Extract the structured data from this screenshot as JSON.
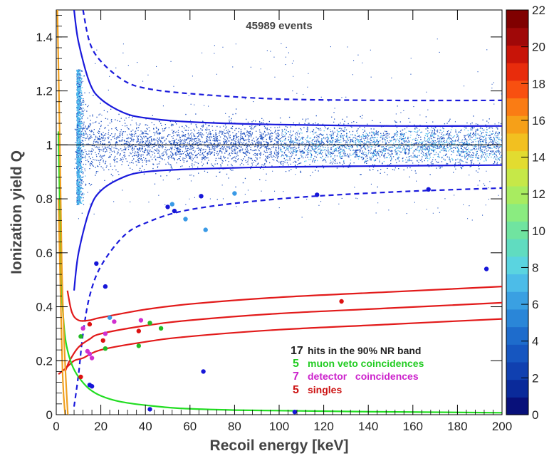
{
  "chart_data": {
    "type": "scatter",
    "xlabel": "Recoil energy [keV]",
    "ylabel": "Ionization yield Q",
    "xlim": [
      0,
      200
    ],
    "ylim": [
      0,
      1.5
    ],
    "x_ticks": [
      0,
      20,
      40,
      60,
      80,
      100,
      120,
      140,
      160,
      180,
      200
    ],
    "y_ticks": [
      0,
      0.2,
      0.4,
      0.6,
      0.8,
      1,
      1.2,
      1.4
    ],
    "event_count_label": "45989 events",
    "colorbar": {
      "range": [
        0,
        22
      ],
      "ticks": [
        0,
        2,
        4,
        6,
        8,
        10,
        12,
        14,
        16,
        18,
        20,
        22
      ],
      "colors": [
        "#08107a",
        "#0a2a9a",
        "#1040b0",
        "#1656c0",
        "#1e6ccc",
        "#2a86d8",
        "#3aa0e2",
        "#4cbce8",
        "#5ad4e0",
        "#60dcc0",
        "#70e4a0",
        "#8aec80",
        "#a8ec60",
        "#c6e848",
        "#e2dc30",
        "#f2c020",
        "#f6a018",
        "#fa7c14",
        "#f85010",
        "#e82c0c",
        "#c81408",
        "#a00808",
        "#800000"
      ]
    },
    "main_population": {
      "density_color_low": "#1e50c0",
      "density_color_high": "#4cc0f0",
      "q_center": 1.0
    },
    "reference_line_y": 1.0,
    "bands": {
      "er_90_inner_upper": [
        [
          8,
          1.5
        ],
        [
          10,
          1.38
        ],
        [
          15,
          1.23
        ],
        [
          20,
          1.17
        ],
        [
          30,
          1.12
        ],
        [
          40,
          1.1
        ],
        [
          60,
          1.085
        ],
        [
          100,
          1.075
        ],
        [
          150,
          1.07
        ],
        [
          200,
          1.07
        ]
      ],
      "er_90_inner_lower": [
        [
          8,
          0.46
        ],
        [
          10,
          0.6
        ],
        [
          15,
          0.76
        ],
        [
          20,
          0.83
        ],
        [
          30,
          0.88
        ],
        [
          40,
          0.9
        ],
        [
          60,
          0.91
        ],
        [
          100,
          0.918
        ],
        [
          150,
          0.922
        ],
        [
          200,
          0.925
        ]
      ],
      "er_outer_upper": [
        [
          12,
          1.5
        ],
        [
          15,
          1.38
        ],
        [
          20,
          1.31
        ],
        [
          30,
          1.24
        ],
        [
          40,
          1.21
        ],
        [
          60,
          1.19
        ],
        [
          100,
          1.17
        ],
        [
          150,
          1.165
        ],
        [
          200,
          1.165
        ]
      ],
      "er_outer_lower": [
        [
          8,
          0.03
        ],
        [
          10,
          0.15
        ],
        [
          12,
          0.3
        ],
        [
          15,
          0.44
        ],
        [
          20,
          0.55
        ],
        [
          30,
          0.66
        ],
        [
          40,
          0.71
        ],
        [
          60,
          0.76
        ],
        [
          100,
          0.8
        ],
        [
          150,
          0.825
        ],
        [
          200,
          0.84
        ]
      ],
      "nr_upper": [
        [
          5,
          0.46
        ],
        [
          7,
          0.38
        ],
        [
          10,
          0.35
        ],
        [
          15,
          0.35
        ],
        [
          20,
          0.36
        ],
        [
          40,
          0.39
        ],
        [
          60,
          0.41
        ],
        [
          100,
          0.435
        ],
        [
          150,
          0.455
        ],
        [
          200,
          0.475
        ]
      ],
      "nr_center": [
        [
          4,
          0.16
        ],
        [
          6,
          0.2
        ],
        [
          10,
          0.25
        ],
        [
          15,
          0.28
        ],
        [
          20,
          0.3
        ],
        [
          40,
          0.33
        ],
        [
          60,
          0.35
        ],
        [
          100,
          0.375
        ],
        [
          150,
          0.395
        ],
        [
          200,
          0.415
        ]
      ],
      "nr_lower": [
        [
          1,
          0.15
        ],
        [
          4,
          0.17
        ],
        [
          8,
          0.2
        ],
        [
          12,
          0.21
        ],
        [
          20,
          0.24
        ],
        [
          40,
          0.27
        ],
        [
          60,
          0.29
        ],
        [
          100,
          0.315
        ],
        [
          150,
          0.335
        ],
        [
          200,
          0.355
        ]
      ],
      "heat_threshold_orange": [
        [
          0.5,
          1.5
        ],
        [
          1.5,
          1.05
        ],
        [
          2.5,
          0.55
        ],
        [
          3.5,
          0.28
        ],
        [
          4.5,
          0.1
        ],
        [
          5.2,
          0
        ]
      ],
      "ionization_threshold_green": [
        [
          1,
          1.05
        ],
        [
          2,
          0.6
        ],
        [
          3,
          0.38
        ],
        [
          5,
          0.24
        ],
        [
          10,
          0.14
        ],
        [
          20,
          0.07
        ],
        [
          40,
          0.035
        ],
        [
          80,
          0.017
        ],
        [
          200,
          0.007
        ]
      ],
      "ionization_threshold_orange_low": [
        [
          1,
          0.8
        ],
        [
          2,
          0.42
        ],
        [
          3,
          0.12
        ],
        [
          4,
          0
        ]
      ]
    },
    "blue_points": [
      [
        65,
        0.81
      ],
      [
        50,
        0.77
      ],
      [
        53,
        0.755
      ],
      [
        117,
        0.815
      ],
      [
        167,
        0.835
      ],
      [
        18,
        0.56
      ],
      [
        22,
        0.475
      ],
      [
        193,
        0.54
      ],
      [
        66,
        0.16
      ],
      [
        15,
        0.11
      ],
      [
        16,
        0.105
      ],
      [
        42,
        0.02
      ],
      [
        107,
        0.01
      ]
    ],
    "lightblue_points": [
      [
        52,
        0.78
      ],
      [
        58,
        0.725
      ],
      [
        67,
        0.685
      ],
      [
        80,
        0.82
      ],
      [
        24,
        0.36
      ]
    ],
    "green_points": [
      [
        11,
        0.29
      ],
      [
        22,
        0.245
      ],
      [
        37,
        0.255
      ],
      [
        42,
        0.34
      ],
      [
        47,
        0.32
      ]
    ],
    "magenta_points": [
      [
        12,
        0.32
      ],
      [
        14,
        0.235
      ],
      [
        15,
        0.225
      ],
      [
        16,
        0.21
      ],
      [
        22,
        0.3
      ],
      [
        26,
        0.345
      ],
      [
        38,
        0.35
      ]
    ],
    "red_points": [
      [
        15,
        0.335
      ],
      [
        21,
        0.275
      ],
      [
        37,
        0.31
      ],
      [
        128,
        0.42
      ],
      [
        11,
        0.14
      ]
    ],
    "legend": [
      {
        "count": "17",
        "label": "hits in the 90% NR band",
        "color": "#222222"
      },
      {
        "count": "5",
        "label": "muon veto coincidences",
        "color": "#22cc22"
      },
      {
        "count": "7",
        "label": "detector   coincidences",
        "color": "#cc22cc"
      },
      {
        "count": "5",
        "label": "singles",
        "color": "#cc1111"
      }
    ],
    "series_colors": {
      "band_blue": "#1a1adc",
      "band_red": "#e21a1a",
      "threshold_green": "#22dd22",
      "threshold_orange": "#f0a020",
      "reference": "#000000"
    }
  }
}
